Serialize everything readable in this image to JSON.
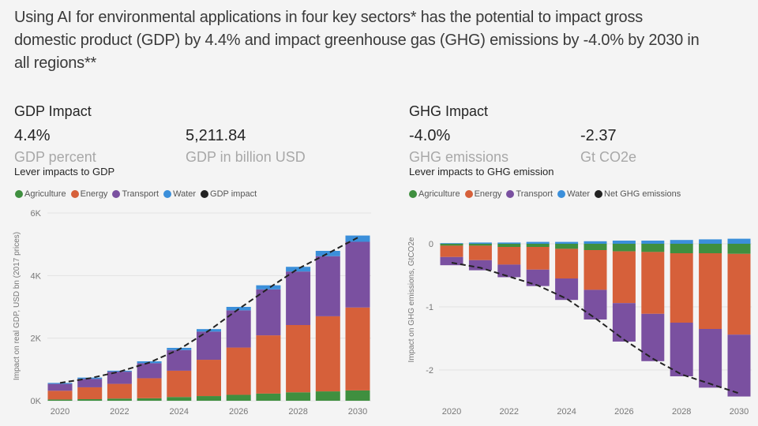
{
  "header": {
    "title_lines": [
      "Using AI for environmental applications in four key sectors* has the potential to impact gross",
      "domestic product (GDP) by 4.4% and impact greenhouse gas (GHG) emissions by -4.0% by 2030 in",
      "all regions**"
    ]
  },
  "gdp_panel": {
    "title": "GDP Impact",
    "kpi1_value": "4.4%",
    "kpi1_label": "GDP percent",
    "kpi2_value": "5,211.84",
    "kpi2_label": "GDP in billion USD",
    "chart_title": "Lever impacts to GDP"
  },
  "ghg_panel": {
    "title": "GHG Impact",
    "kpi1_value": "-4.0%",
    "kpi1_label": "GHG emissions",
    "kpi2_value": "-2.37",
    "kpi2_label": "Gt CO2e",
    "chart_title": "Lever impacts to GHG emission"
  },
  "colors": {
    "Agriculture": "#3f8f3f",
    "Energy": "#d6603a",
    "Transport": "#7a50a0",
    "Water": "#3b8fda",
    "line": "#222222"
  },
  "chart_data": [
    {
      "type": "bar",
      "stacked": true,
      "title": "Lever impacts to GDP",
      "xlabel": "",
      "ylabel": "Impact on real GDP, USD bn (2017 prices)",
      "ylim": [
        0,
        6000
      ],
      "yticks": [
        0,
        2000,
        4000,
        6000
      ],
      "ytick_labels": [
        "0K",
        "2K",
        "4K",
        "6K"
      ],
      "categories": [
        "2020",
        "2021",
        "2022",
        "2023",
        "2024",
        "2025",
        "2026",
        "2027",
        "2028",
        "2029",
        "2030"
      ],
      "xtick_labels": [
        "2020",
        "2022",
        "2024",
        "2026",
        "2028",
        "2030"
      ],
      "grid": true,
      "legend": "top-left",
      "series": [
        {
          "name": "Agriculture",
          "values": [
            40,
            50,
            70,
            80,
            120,
            150,
            190,
            230,
            270,
            300,
            330
          ]
        },
        {
          "name": "Energy",
          "values": [
            280,
            380,
            470,
            640,
            840,
            1160,
            1510,
            1860,
            2150,
            2400,
            2650
          ]
        },
        {
          "name": "Transport",
          "values": [
            220,
            270,
            390,
            480,
            660,
            900,
            1190,
            1470,
            1710,
            1920,
            2100
          ]
        },
        {
          "name": "Water",
          "values": [
            30,
            40,
            30,
            60,
            70,
            80,
            110,
            130,
            150,
            170,
            200
          ]
        }
      ],
      "line": {
        "name": "GDP impact",
        "style": "dashed",
        "values": [
          570,
          720,
          930,
          1220,
          1640,
          2240,
          2930,
          3590,
          4220,
          4710,
          5212
        ]
      }
    },
    {
      "type": "bar",
      "stacked": true,
      "title": "Lever impacts to GHG emission",
      "xlabel": "",
      "ylabel": "Impact on GHG emissions, GtCO2e",
      "ylim": [
        -2.45,
        0.1
      ],
      "yticks": [
        0,
        -1,
        -2
      ],
      "ytick_labels": [
        "0",
        "-1",
        "-2"
      ],
      "categories": [
        "2020",
        "2021",
        "2022",
        "2023",
        "2024",
        "2025",
        "2026",
        "2027",
        "2028",
        "2029",
        "2030"
      ],
      "xtick_labels": [
        "2020",
        "2022",
        "2024",
        "2026",
        "2028",
        "2030"
      ],
      "grid": true,
      "legend": "top-left",
      "series": [
        {
          "name": "Agriculture",
          "values": [
            -0.03,
            -0.03,
            -0.05,
            -0.05,
            -0.08,
            -0.1,
            -0.12,
            -0.13,
            -0.15,
            -0.15,
            -0.16
          ]
        },
        {
          "name": "Energy",
          "values": [
            -0.18,
            -0.23,
            -0.28,
            -0.36,
            -0.47,
            -0.63,
            -0.82,
            -0.98,
            -1.1,
            -1.2,
            -1.28
          ]
        },
        {
          "name": "Transport",
          "values": [
            -0.13,
            -0.16,
            -0.2,
            -0.26,
            -0.34,
            -0.47,
            -0.61,
            -0.75,
            -0.85,
            -0.93,
            -0.98
          ]
        },
        {
          "name": "Water",
          "values": [
            0.01,
            0.02,
            0.02,
            0.03,
            0.03,
            0.04,
            0.05,
            0.05,
            0.06,
            0.07,
            0.08
          ]
        }
      ],
      "line": {
        "name": "Net GHG emissions",
        "style": "dashed",
        "values": [
          -0.3,
          -0.38,
          -0.52,
          -0.66,
          -0.87,
          -1.18,
          -1.52,
          -1.82,
          -2.07,
          -2.22,
          -2.37
        ]
      }
    }
  ]
}
